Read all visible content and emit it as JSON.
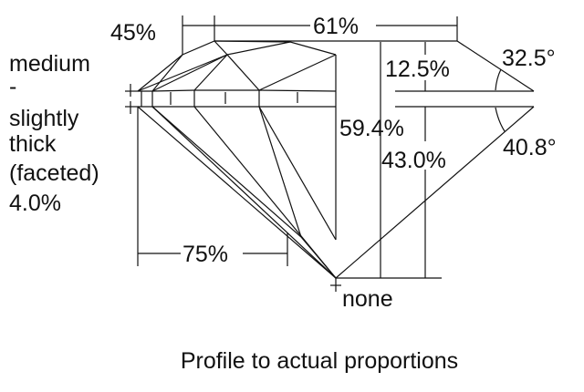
{
  "labels": {
    "crown_angle_ratio": "45%",
    "table": "61%",
    "girdle": [
      "medium",
      "-",
      "slightly",
      "thick",
      "(faceted)",
      "4.0%"
    ],
    "crown_height": "12.5%",
    "crown_angle": "32.5°",
    "total_depth": "59.4%",
    "pavilion_depth": "43.0%",
    "pavilion_angle": "40.8°",
    "lower_half": "75%",
    "culet": "none"
  },
  "caption": "Profile to actual proportions"
}
